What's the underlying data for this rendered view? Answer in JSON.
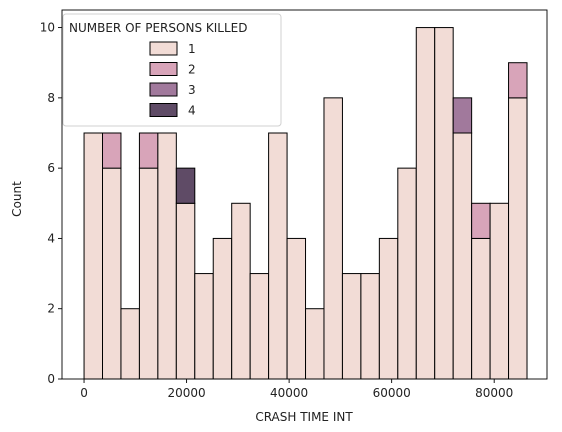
{
  "chart_data": {
    "type": "bar",
    "stacked": true,
    "title": "",
    "xlabel": "CRASH TIME INT",
    "ylabel": "Count",
    "xlim": [
      -4300,
      90300
    ],
    "ylim": [
      0,
      10.5
    ],
    "xticks": [
      0,
      20000,
      40000,
      60000,
      80000
    ],
    "xtick_labels": [
      "0",
      "20000",
      "40000",
      "60000",
      "80000"
    ],
    "yticks": [
      0,
      2,
      4,
      6,
      8,
      10
    ],
    "ytick_labels": [
      "0",
      "2",
      "4",
      "6",
      "8",
      "10"
    ],
    "bin_start": 0,
    "bin_width": 3600,
    "grid": false,
    "legend": {
      "title": "NUMBER OF PERSONS KILLED",
      "placement": "top-left"
    },
    "series": [
      {
        "name": "1",
        "color": "#f2dcd6",
        "values": [
          7,
          6,
          2,
          6,
          7,
          5,
          3,
          4,
          5,
          3,
          7,
          4,
          2,
          8,
          3,
          3,
          4,
          6,
          10,
          10,
          7,
          4,
          5,
          8
        ]
      },
      {
        "name": "2",
        "color": "#d8a4b9",
        "values": [
          0,
          1,
          0,
          1,
          0,
          0,
          0,
          0,
          0,
          0,
          0,
          0,
          0,
          0,
          0,
          0,
          0,
          0,
          0,
          0,
          0,
          1,
          0,
          1
        ]
      },
      {
        "name": "3",
        "color": "#a1799c",
        "values": [
          0,
          0,
          0,
          0,
          0,
          0,
          0,
          0,
          0,
          0,
          0,
          0,
          0,
          0,
          0,
          0,
          0,
          0,
          0,
          0,
          1,
          0,
          0,
          0
        ]
      },
      {
        "name": "4",
        "color": "#5f4b66",
        "values": [
          0,
          0,
          0,
          0,
          0,
          1,
          0,
          0,
          0,
          0,
          0,
          0,
          0,
          0,
          0,
          0,
          0,
          0,
          0,
          0,
          0,
          0,
          0,
          0
        ]
      }
    ]
  }
}
